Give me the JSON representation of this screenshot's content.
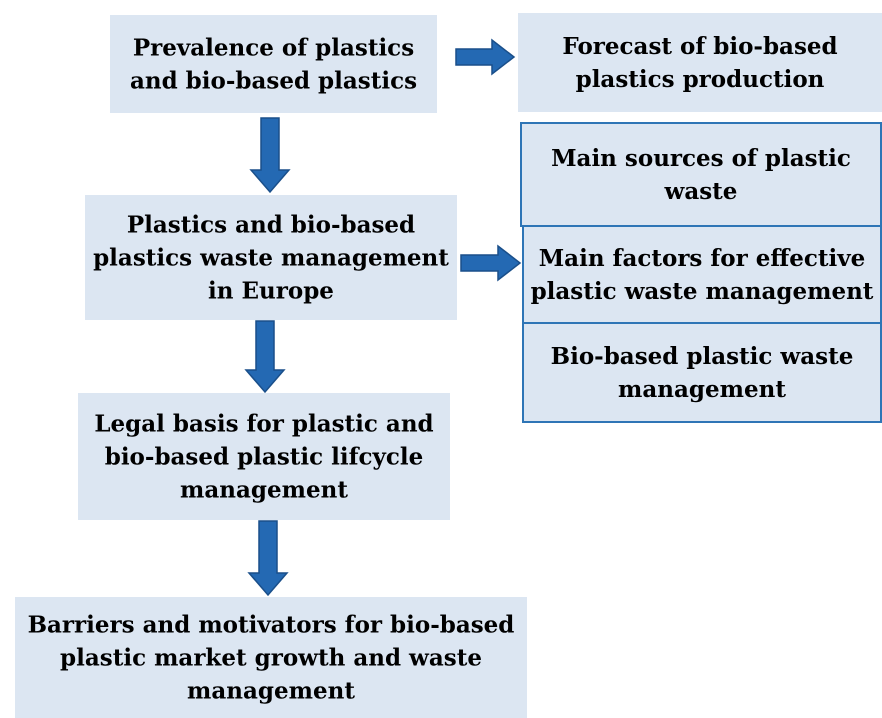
{
  "nodes": [
    {
      "lines": [
        "Prevalence of plastics",
        "and bio-based plastics"
      ]
    },
    {
      "lines": [
        "Forecast of bio-based",
        "plastics production"
      ]
    },
    {
      "lines": [
        "Plastics and bio-based",
        "plastics waste management",
        "in Europe"
      ]
    },
    {
      "lines": [
        "Main sources of plastic",
        "waste"
      ]
    },
    {
      "lines": [
        "Main factors for effective",
        "plastic waste management"
      ]
    },
    {
      "lines": [
        "Bio-based plastic waste",
        "management"
      ]
    },
    {
      "lines": [
        "Legal basis for plastic and",
        "bio-based plastic lifcycle",
        "management"
      ]
    },
    {
      "lines": [
        "Barriers and motivators for bio-based",
        "plastic market growth and waste",
        "management"
      ]
    }
  ]
}
